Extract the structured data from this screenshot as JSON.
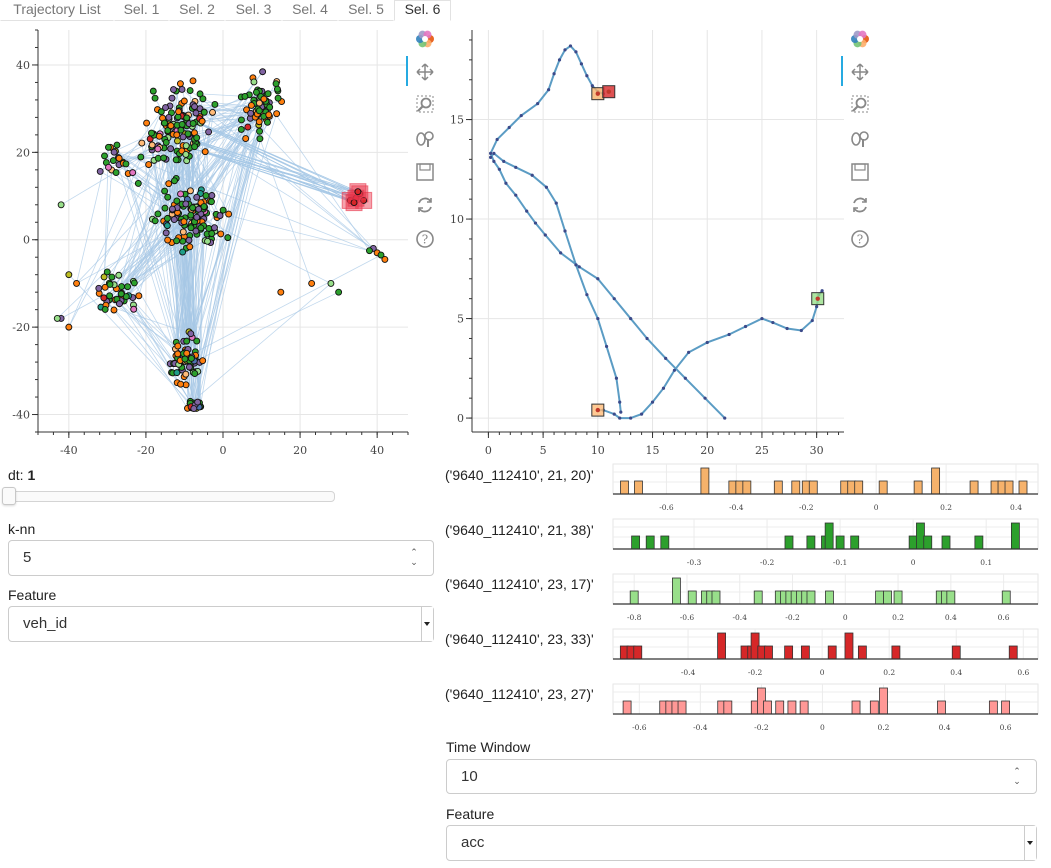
{
  "tabs": [
    {
      "label": "Trajectory List",
      "active": false
    },
    {
      "label": "Sel. 1",
      "active": false
    },
    {
      "label": "Sel. 2",
      "active": false
    },
    {
      "label": "Sel. 3",
      "active": false
    },
    {
      "label": "Sel. 4",
      "active": false
    },
    {
      "label": "Sel. 5",
      "active": false
    },
    {
      "label": "Sel. 6",
      "active": true
    }
  ],
  "toolbar_icons": [
    "bokeh-logo-icon",
    "pan-icon",
    "box-zoom-icon",
    "wheel-zoom-icon",
    "save-icon",
    "reset-icon",
    "help-icon"
  ],
  "left_controls": {
    "dt_label": "dt:",
    "dt_value": "1",
    "dt_slider_fraction": 0.0,
    "knn_label": "k-nn",
    "knn_value": "5",
    "feature_label": "Feature",
    "feature_value": "veh_id"
  },
  "right_controls": {
    "time_window_label": "Time Window",
    "time_window_value": "10",
    "feature_label": "Feature",
    "feature_value": "acc"
  },
  "colors": {
    "edge": "#a6c8e6",
    "path": "#5b9cc4",
    "point_dark": "#3b4a8a",
    "selection_red": "#e8344a",
    "c1": "#f6b26b",
    "c2": "#2ca02c",
    "c3": "#98df8a",
    "c4": "#d62728",
    "c5": "#ff9896",
    "node_colors": [
      "#2ca02c",
      "#ff7f0e",
      "#8064a2",
      "#98df8a",
      "#ffbb78",
      "#1f9e89",
      "#d62728",
      "#e377c2",
      "#bcbd22",
      "#4c72b0"
    ]
  },
  "chart_data": [
    {
      "type": "scatter",
      "xlim": [
        -48,
        48
      ],
      "ylim": [
        -44,
        48
      ],
      "x_ticks": [
        -40,
        -20,
        0,
        20,
        40
      ],
      "y_ticks": [
        -40,
        -20,
        0,
        20,
        40
      ],
      "grid": true,
      "selection_points": [
        [
          33,
          9
        ],
        [
          34.5,
          9.5
        ],
        [
          35.5,
          10.5
        ],
        [
          36.5,
          9
        ],
        [
          34,
          8.5
        ],
        [
          35,
          11
        ]
      ]
    },
    {
      "type": "line",
      "xlim": [
        -1.5,
        32.5
      ],
      "ylim": [
        -0.7,
        19.5
      ],
      "x_ticks": [
        0,
        5,
        10,
        15,
        20,
        25,
        30
      ],
      "y_ticks": [
        0,
        5,
        10,
        15
      ],
      "grid": true,
      "path_a": [
        [
          21.6,
          0
        ],
        [
          19.8,
          1
        ],
        [
          18,
          2
        ],
        [
          16.2,
          3
        ],
        [
          14.5,
          4
        ],
        [
          13,
          5
        ],
        [
          11.5,
          6
        ],
        [
          10,
          7
        ],
        [
          8.3,
          7.6
        ],
        [
          6.6,
          8.3
        ],
        [
          5.2,
          9.2
        ],
        [
          4.3,
          9.8
        ],
        [
          3.5,
          10.4
        ],
        [
          2.5,
          11.2
        ],
        [
          1.6,
          11.8
        ],
        [
          1,
          12.5
        ],
        [
          0.5,
          12.9
        ],
        [
          0.2,
          13.3
        ],
        [
          0.8,
          14
        ],
        [
          1.9,
          14.6
        ],
        [
          3,
          15.2
        ],
        [
          4.5,
          15.8
        ],
        [
          5.5,
          16.5
        ],
        [
          6,
          17.3
        ],
        [
          6.5,
          18
        ],
        [
          7,
          18.5
        ],
        [
          7.5,
          18.7
        ],
        [
          8,
          18.4
        ],
        [
          8.5,
          17.8
        ],
        [
          9,
          17.2
        ],
        [
          9.5,
          16.7
        ],
        [
          10,
          16.4
        ],
        [
          10.5,
          16.3
        ]
      ],
      "path_b": [
        [
          30.5,
          6.4
        ],
        [
          30.2,
          6.2
        ],
        [
          30,
          5.6
        ],
        [
          29.6,
          4.9
        ],
        [
          28.6,
          4.4
        ],
        [
          27.3,
          4.5
        ],
        [
          26,
          4.8
        ],
        [
          25,
          5
        ],
        [
          23.5,
          4.6
        ],
        [
          22,
          4.2
        ],
        [
          20,
          3.8
        ],
        [
          18.3,
          3.3
        ],
        [
          17,
          2.4
        ],
        [
          16,
          1.5
        ],
        [
          15,
          0.8
        ],
        [
          14,
          0.2
        ],
        [
          13,
          0
        ],
        [
          12,
          0
        ],
        [
          11.5,
          0.2
        ],
        [
          10.5,
          0.4
        ],
        [
          10,
          0.4
        ]
      ],
      "path_c": [
        [
          12.1,
          0.3
        ],
        [
          12,
          0.8
        ],
        [
          11.7,
          2
        ],
        [
          10.8,
          3.6
        ],
        [
          10,
          5
        ],
        [
          9,
          6.2
        ],
        [
          8,
          7.7
        ],
        [
          7,
          9.4
        ],
        [
          6.2,
          10.8
        ],
        [
          5.3,
          11.6
        ],
        [
          4,
          12.2
        ],
        [
          2.5,
          12.6
        ],
        [
          1.4,
          12.9
        ],
        [
          0.5,
          13.3
        ],
        [
          0.2,
          13.1
        ]
      ],
      "markers": [
        {
          "x": 10,
          "y": 16.3,
          "color": "#f6b26b"
        },
        {
          "x": 11,
          "y": 16.4,
          "color": "#d62728"
        },
        {
          "x": 30.1,
          "y": 6.0,
          "color": "#98df8a"
        },
        {
          "x": 10,
          "y": 0.4,
          "color": "#ffbb78"
        }
      ]
    },
    {
      "type": "bar",
      "label": "('9640_112410', 21, 20)'",
      "color": "#f6b26b",
      "xlim": [
        -0.73,
        0.44
      ],
      "x_ticks": [
        -0.6,
        -0.4,
        -0.2,
        0,
        0.2,
        0.4
      ],
      "bars": [
        [
          -0.72,
          1
        ],
        [
          -0.68,
          1
        ],
        [
          -0.49,
          2
        ],
        [
          -0.41,
          1
        ],
        [
          -0.39,
          1
        ],
        [
          -0.37,
          1
        ],
        [
          -0.28,
          1
        ],
        [
          -0.23,
          1
        ],
        [
          -0.2,
          1
        ],
        [
          -0.18,
          1
        ],
        [
          -0.09,
          1
        ],
        [
          -0.07,
          1
        ],
        [
          -0.05,
          1
        ],
        [
          0.02,
          1
        ],
        [
          0.12,
          1
        ],
        [
          0.17,
          2
        ],
        [
          0.28,
          1
        ],
        [
          0.34,
          1
        ],
        [
          0.36,
          1
        ],
        [
          0.38,
          1
        ],
        [
          0.42,
          1
        ]
      ]
    },
    {
      "type": "bar",
      "label": "('9640_112410', 21, 38)'",
      "color": "#2ca02c",
      "xlim": [
        -0.4,
        0.16
      ],
      "x_ticks": [
        -0.3,
        -0.2,
        -0.1,
        0,
        0.1
      ],
      "bars": [
        [
          -0.38,
          1
        ],
        [
          -0.36,
          1
        ],
        [
          -0.34,
          1
        ],
        [
          -0.17,
          1
        ],
        [
          -0.14,
          1
        ],
        [
          -0.12,
          1
        ],
        [
          -0.115,
          2
        ],
        [
          -0.1,
          1
        ],
        [
          -0.08,
          1
        ],
        [
          0,
          1
        ],
        [
          0.01,
          2
        ],
        [
          0.02,
          1
        ],
        [
          0.045,
          1
        ],
        [
          0.09,
          1
        ],
        [
          0.14,
          2
        ]
      ]
    },
    {
      "type": "bar",
      "label": "('9640_112410', 23, 17)'",
      "color": "#98df8a",
      "xlim": [
        -0.85,
        0.7
      ],
      "x_ticks": [
        -0.8,
        -0.6,
        -0.4,
        -0.2,
        0,
        0.2,
        0.4,
        0.6
      ],
      "bars": [
        [
          -0.8,
          1
        ],
        [
          -0.64,
          2
        ],
        [
          -0.58,
          1
        ],
        [
          -0.53,
          1
        ],
        [
          -0.51,
          1
        ],
        [
          -0.49,
          1
        ],
        [
          -0.33,
          1
        ],
        [
          -0.25,
          1
        ],
        [
          -0.23,
          1
        ],
        [
          -0.21,
          1
        ],
        [
          -0.19,
          1
        ],
        [
          -0.17,
          1
        ],
        [
          -0.15,
          1
        ],
        [
          -0.13,
          1
        ],
        [
          -0.06,
          1
        ],
        [
          0.13,
          1
        ],
        [
          0.16,
          1
        ],
        [
          0.2,
          1
        ],
        [
          0.36,
          1
        ],
        [
          0.38,
          1
        ],
        [
          0.4,
          1
        ],
        [
          0.61,
          1
        ]
      ]
    },
    {
      "type": "bar",
      "label": "('9640_112410', 23, 33)'",
      "color": "#d62728",
      "xlim": [
        -0.6,
        0.62
      ],
      "x_ticks": [
        -0.4,
        -0.2,
        0,
        0.2,
        0.4,
        0.6
      ],
      "bars": [
        [
          -0.59,
          1
        ],
        [
          -0.57,
          1
        ],
        [
          -0.55,
          1
        ],
        [
          -0.3,
          2
        ],
        [
          -0.23,
          1
        ],
        [
          -0.21,
          1
        ],
        [
          -0.2,
          2
        ],
        [
          -0.18,
          1
        ],
        [
          -0.16,
          1
        ],
        [
          -0.1,
          1
        ],
        [
          -0.05,
          1
        ],
        [
          0.03,
          1
        ],
        [
          0.08,
          2
        ],
        [
          0.12,
          1
        ],
        [
          0.22,
          1
        ],
        [
          0.4,
          1
        ],
        [
          0.57,
          1
        ]
      ]
    },
    {
      "type": "bar",
      "label": "('9640_112410', 23, 27)'",
      "color": "#ff9896",
      "xlim": [
        -0.66,
        0.68
      ],
      "x_ticks": [
        -0.6,
        -0.4,
        -0.2,
        0,
        0.2,
        0.4,
        0.6
      ],
      "bars": [
        [
          -0.64,
          1
        ],
        [
          -0.52,
          1
        ],
        [
          -0.5,
          1
        ],
        [
          -0.48,
          1
        ],
        [
          -0.46,
          1
        ],
        [
          -0.33,
          1
        ],
        [
          -0.31,
          1
        ],
        [
          -0.22,
          1
        ],
        [
          -0.2,
          2
        ],
        [
          -0.18,
          1
        ],
        [
          -0.14,
          1
        ],
        [
          -0.1,
          1
        ],
        [
          -0.06,
          1
        ],
        [
          0.11,
          1
        ],
        [
          0.17,
          1
        ],
        [
          0.2,
          2
        ],
        [
          0.39,
          1
        ],
        [
          0.56,
          1
        ],
        [
          0.6,
          1
        ]
      ]
    }
  ]
}
